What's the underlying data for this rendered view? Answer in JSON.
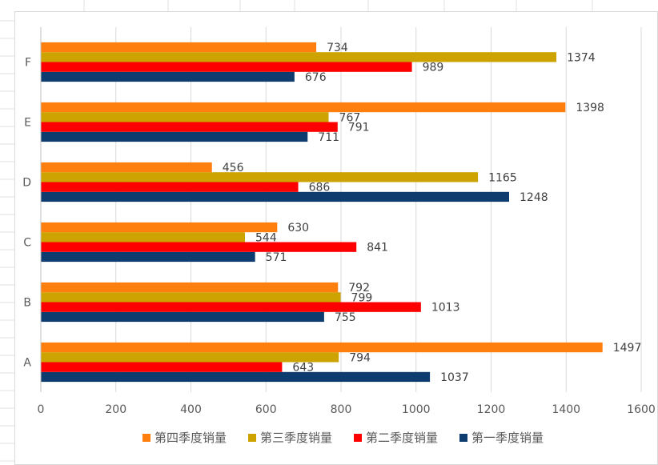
{
  "chart_data": {
    "type": "bar",
    "orientation": "horizontal",
    "categories": [
      "A",
      "B",
      "C",
      "D",
      "E",
      "F"
    ],
    "series": [
      {
        "name": "第一季度销量",
        "color": "#0e3c6e",
        "values": [
          1037,
          755,
          571,
          1248,
          711,
          676
        ]
      },
      {
        "name": "第二季度销量",
        "color": "#ff0000",
        "values": [
          643,
          1013,
          841,
          686,
          791,
          989
        ]
      },
      {
        "name": "第三季度销量",
        "color": "#cca300",
        "values": [
          794,
          799,
          544,
          1165,
          767,
          1374
        ]
      },
      {
        "name": "第四季度销量",
        "color": "#ff7f0e",
        "values": [
          1497,
          792,
          630,
          456,
          1398,
          734
        ]
      }
    ],
    "xlim": [
      0,
      1600
    ],
    "xticks": [
      "0",
      "200",
      "400",
      "600",
      "800",
      "1000",
      "1200",
      "1400",
      "1600"
    ],
    "grid": true,
    "legend_position": "bottom",
    "legend_order": [
      "第四季度销量",
      "第三季度销量",
      "第二季度销量",
      "第一季度销量"
    ],
    "data_labels": true
  },
  "colors": {
    "gridline": "#d9d9d9",
    "axis": "#bfbfbf",
    "sheet_grid": "#e0e0e0"
  }
}
